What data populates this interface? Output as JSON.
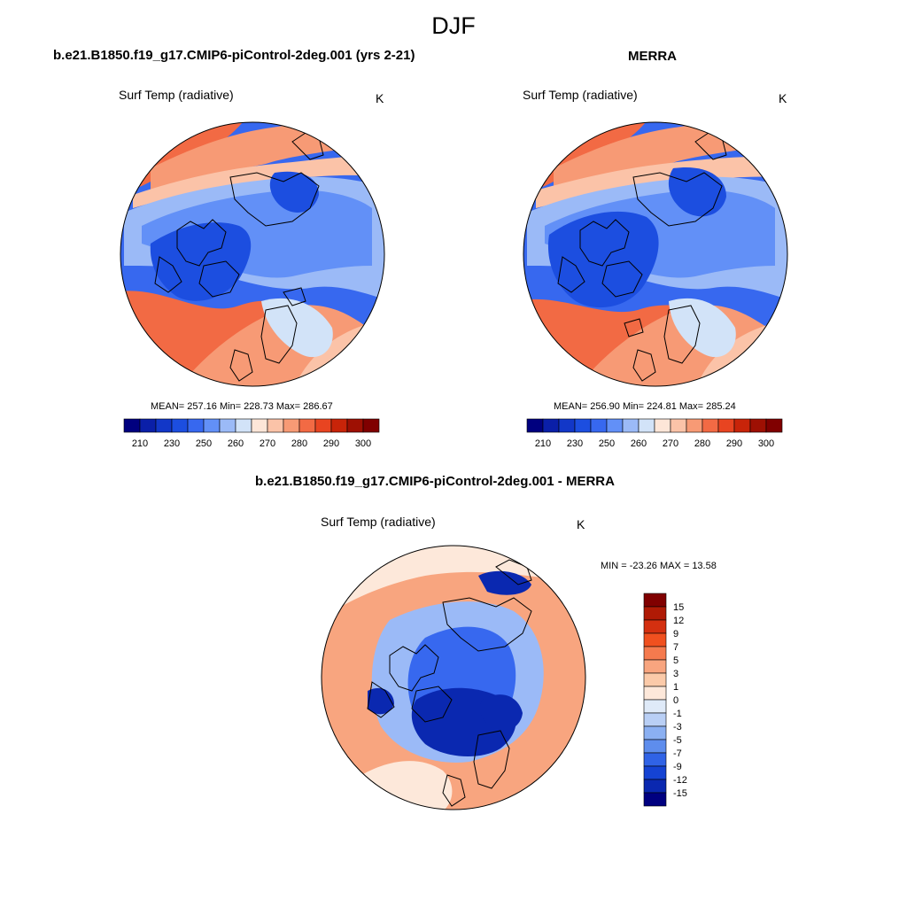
{
  "figure": {
    "title": "DJF"
  },
  "panels": [
    {
      "id": "model",
      "title": "b.e21.B1850.f19_g17.CMIP6-piControl-2deg.001 (yrs 2-21)",
      "variable": "Surf Temp (radiative)",
      "units": "K",
      "stats": "MEAN= 257.16  Min= 228.73  Max= 286.67",
      "colorbar": {
        "ticks": [
          "210",
          "230",
          "250",
          "260",
          "270",
          "280",
          "290",
          "300"
        ],
        "colors": [
          "#00007f",
          "#0a1fa8",
          "#1237c8",
          "#1c4ee0",
          "#3768ef",
          "#6290f7",
          "#9bbaf7",
          "#d2e3f8",
          "#fde6d8",
          "#fbc3a8",
          "#f79a75",
          "#f26a44",
          "#e84421",
          "#c82409",
          "#9e1003",
          "#800000"
        ]
      }
    },
    {
      "id": "obs",
      "title": "MERRA",
      "variable": "Surf Temp (radiative)",
      "units": "K",
      "stats": "MEAN= 256.90  Min= 224.81  Max= 285.24",
      "colorbar": {
        "ticks": [
          "210",
          "230",
          "250",
          "260",
          "270",
          "280",
          "290",
          "300"
        ],
        "colors": [
          "#00007f",
          "#0a1fa8",
          "#1237c8",
          "#1c4ee0",
          "#3768ef",
          "#6290f7",
          "#9bbaf7",
          "#d2e3f8",
          "#fde6d8",
          "#fbc3a8",
          "#f79a75",
          "#f26a44",
          "#e84421",
          "#c82409",
          "#9e1003",
          "#800000"
        ]
      }
    },
    {
      "id": "diff",
      "title": "b.e21.B1850.f19_g17.CMIP6-piControl-2deg.001 - MERRA",
      "variable": "Surf Temp (radiative)",
      "units": "K",
      "stats": "MIN = -23.26 MAX =  13.58",
      "colorbar": {
        "ticks": [
          "15",
          "12",
          "9",
          "7",
          "5",
          "3",
          "1",
          "0",
          "-1",
          "-3",
          "-5",
          "-7",
          "-9",
          "-12",
          "-15"
        ],
        "colors": [
          "#800000",
          "#b01a05",
          "#d43010",
          "#f0501f",
          "#f57a4e",
          "#f8a57f",
          "#fbcaa9",
          "#fde8da",
          "#dfeaf8",
          "#b9cff5",
          "#8bb0f2",
          "#5e8ded",
          "#3063e6",
          "#1543d3",
          "#0a28b0",
          "#000080"
        ]
      }
    }
  ],
  "map_colors": {
    "deep_blue": "#1c4ee0",
    "mid_blue": "#3768ef",
    "light_blue": "#6290f7",
    "pale_blue": "#9bbaf7",
    "very_pale_blue": "#d2e3f8",
    "pale_orange": "#fbc3a8",
    "orange": "#f79a75",
    "red_orange": "#f26a44",
    "red": "#e84421",
    "diff_pale": "#fde8da",
    "diff_light_red": "#f8a57f",
    "diff_dark_blue": "#0a28b0",
    "coast": "#000000"
  }
}
